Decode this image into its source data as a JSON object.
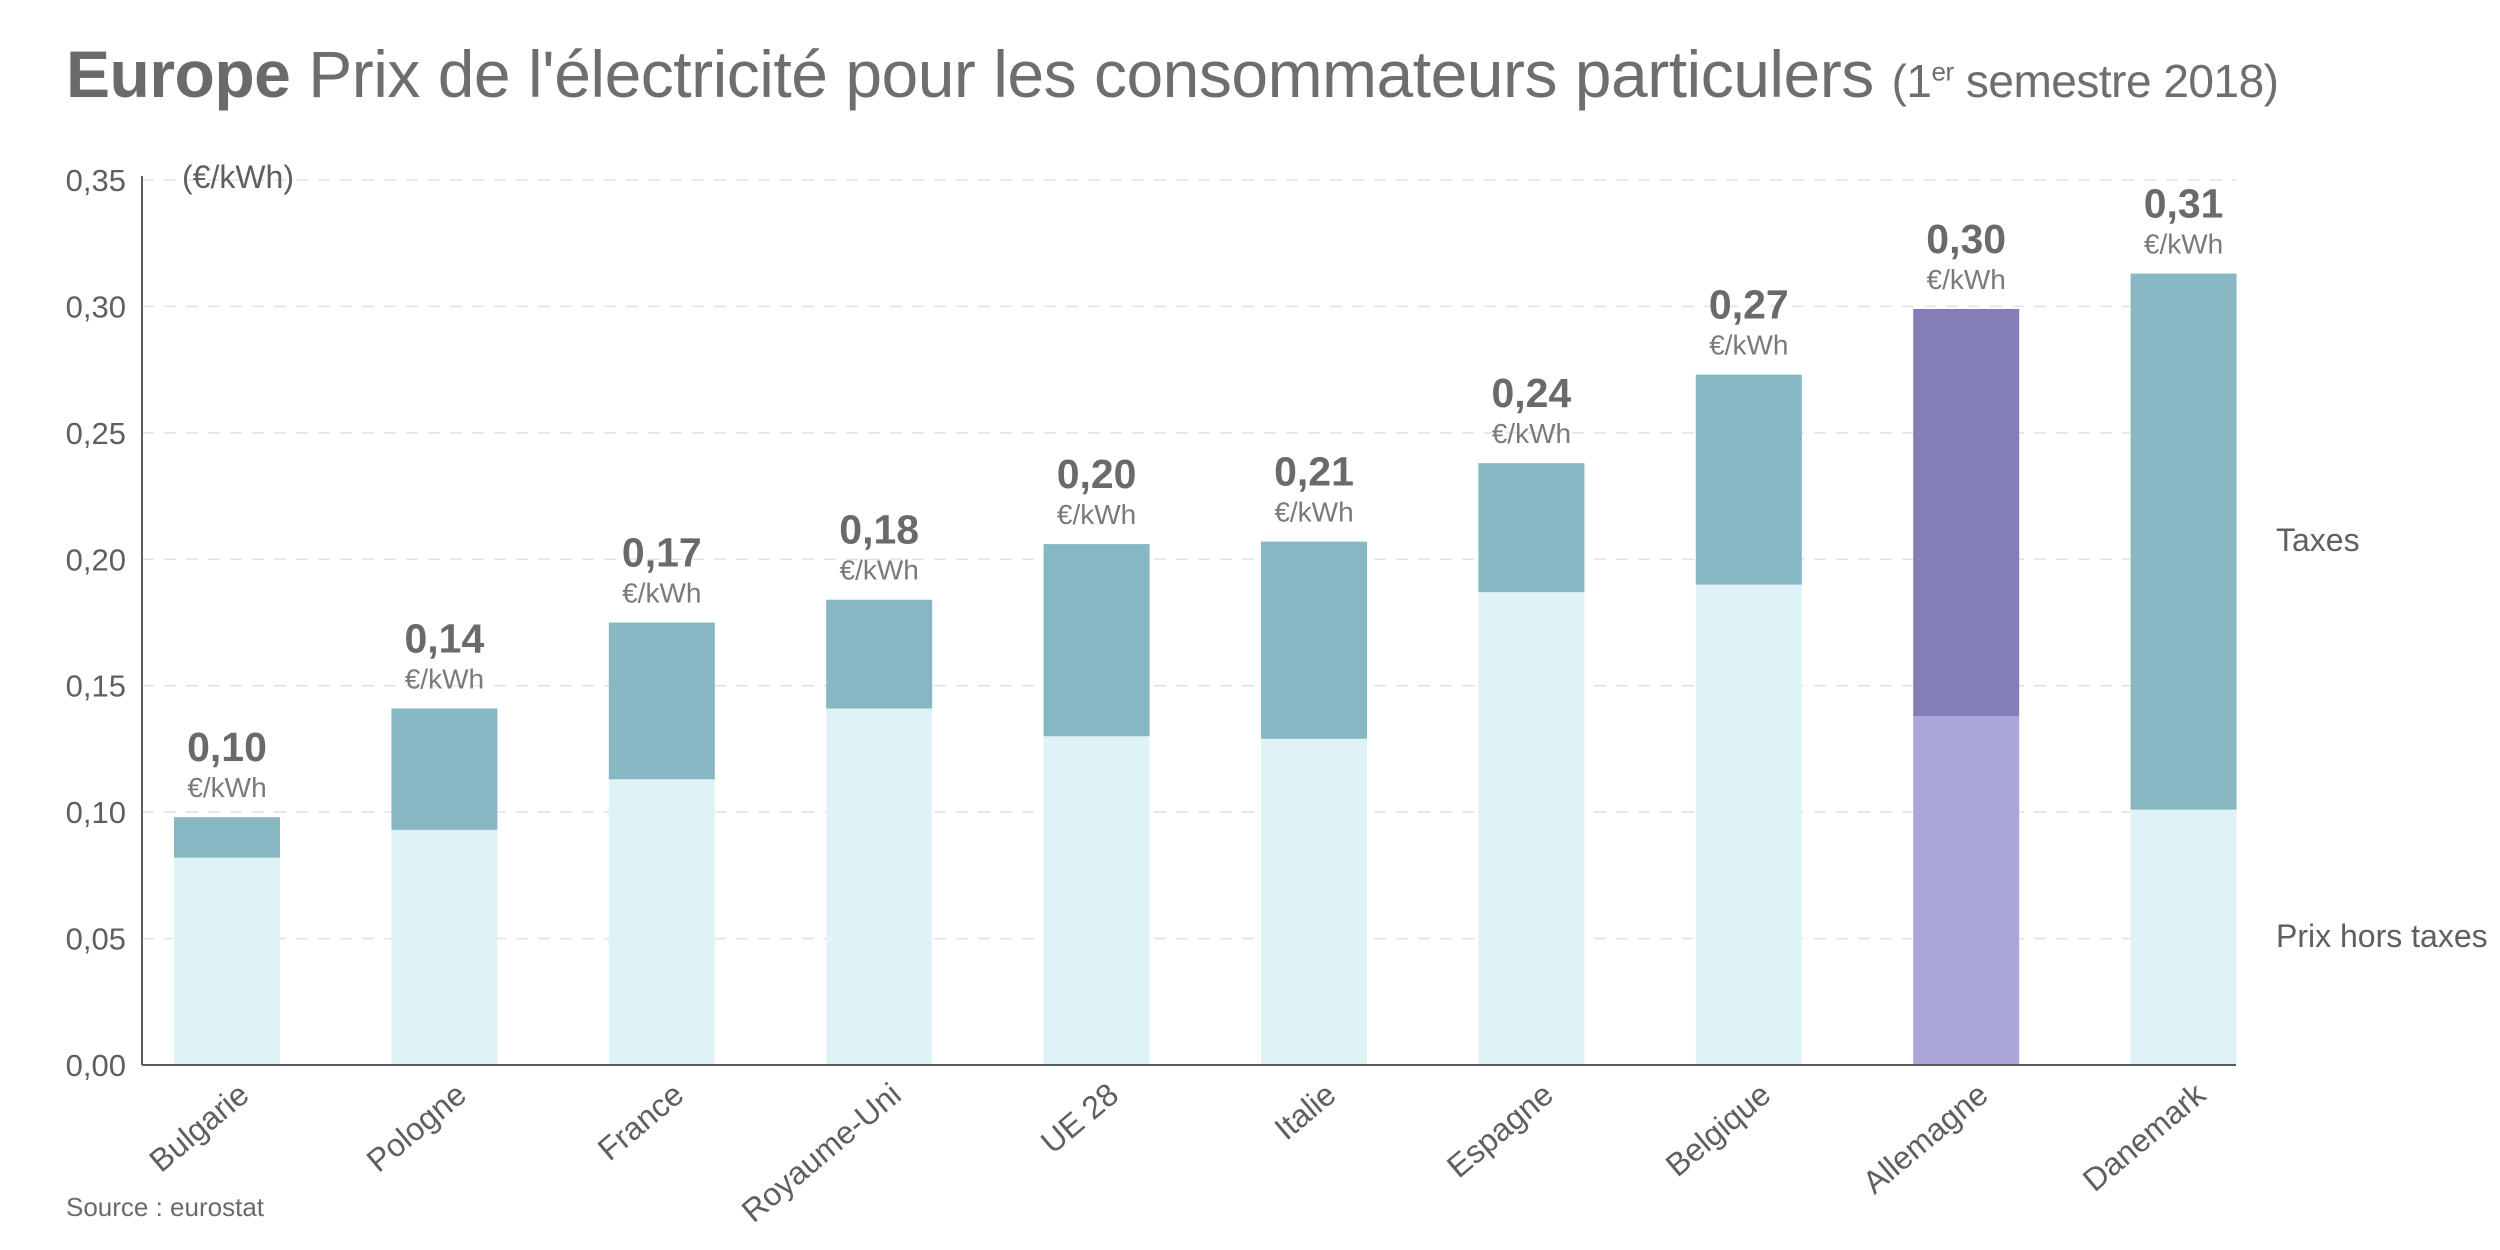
{
  "title": {
    "bold": "Europe",
    "main": "Prix de l'électricité pour les consommateurs particulers",
    "period_open": "(1",
    "period_sup": "er",
    "period_rest": " semestre 2018)"
  },
  "source": "Source : eurostat",
  "colors": {
    "base": "#dff3f6",
    "taxes": "#87b7c3",
    "highlight_base": "#aba8d9",
    "highlight_taxes": "#837eb7",
    "axis": "#5a5a5a",
    "grid": "#e3e3e3"
  },
  "chart_data": {
    "type": "bar",
    "stacked": true,
    "unit_label": "(€/kWh)",
    "value_unit": "€/kWh",
    "categories": [
      "Bulgarie",
      "Pologne",
      "France",
      "Royaume-Uni",
      "UE 28",
      "Italie",
      "Espagne",
      "Belgique",
      "Allemagne",
      "Danemark"
    ],
    "series": [
      {
        "name": "Prix hors taxes",
        "values": [
          0.082,
          0.093,
          0.113,
          0.141,
          0.13,
          0.129,
          0.187,
          0.19,
          0.138,
          0.101
        ]
      },
      {
        "name": "Taxes",
        "values": [
          0.016,
          0.048,
          0.062,
          0.043,
          0.076,
          0.078,
          0.051,
          0.083,
          0.161,
          0.212
        ]
      }
    ],
    "totals_labels": [
      "0,10",
      "0,14",
      "0,17",
      "0,18",
      "0,20",
      "0,21",
      "0,24",
      "0,27",
      "0,30",
      "0,31"
    ],
    "highlight": "Allemagne",
    "ylim": [
      0,
      0.35
    ],
    "yticks": [
      "0,00",
      "0,05",
      "0,10",
      "0,15",
      "0,20",
      "0,25",
      "0,30",
      "0,35"
    ],
    "grid": true,
    "legend": [
      "Taxes",
      "Prix hors taxes"
    ]
  }
}
